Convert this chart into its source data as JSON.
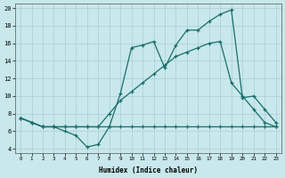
{
  "xlabel": "Humidex (Indice chaleur)",
  "bg_color": "#c8e8ec",
  "grid_color": "#a8cdd4",
  "line_color": "#1a6e6a",
  "xlim": [
    -0.5,
    23.5
  ],
  "ylim": [
    3.5,
    20.5
  ],
  "yticks": [
    4,
    6,
    8,
    10,
    12,
    14,
    16,
    18,
    20
  ],
  "xticks": [
    0,
    1,
    2,
    3,
    4,
    5,
    6,
    7,
    8,
    9,
    10,
    11,
    12,
    13,
    14,
    15,
    16,
    17,
    18,
    19,
    20,
    21,
    22,
    23
  ],
  "line_flat_x": [
    0,
    1,
    2,
    3,
    4,
    5,
    6,
    7,
    8,
    9,
    10,
    11,
    12,
    13,
    14,
    15,
    16,
    17,
    18,
    19,
    20,
    21,
    22,
    23
  ],
  "line_flat_y": [
    7.5,
    7.0,
    6.5,
    6.5,
    6.5,
    6.5,
    6.5,
    6.5,
    6.5,
    6.5,
    6.5,
    6.5,
    6.5,
    6.5,
    6.5,
    6.5,
    6.5,
    6.5,
    6.5,
    6.5,
    6.5,
    6.5,
    6.5,
    6.5
  ],
  "line_peak_x": [
    0,
    1,
    2,
    3,
    4,
    5,
    6,
    7,
    8,
    9,
    10,
    11,
    12,
    13,
    14,
    15,
    16,
    17,
    18,
    19,
    20,
    21,
    22,
    23
  ],
  "line_peak_y": [
    7.5,
    7.0,
    6.5,
    6.5,
    6.0,
    5.5,
    4.2,
    4.5,
    6.5,
    10.3,
    15.5,
    15.8,
    16.2,
    13.2,
    15.8,
    17.5,
    17.5,
    18.5,
    19.3,
    19.8,
    9.8,
    10.0,
    8.5,
    7.0
  ],
  "line_diag_x": [
    0,
    1,
    2,
    3,
    4,
    5,
    6,
    7,
    8,
    9,
    10,
    11,
    12,
    13,
    14,
    15,
    16,
    17,
    18,
    19,
    20,
    21,
    22,
    23
  ],
  "line_diag_y": [
    7.5,
    7.0,
    6.5,
    6.5,
    6.5,
    6.5,
    6.5,
    6.5,
    8.0,
    9.5,
    10.5,
    11.5,
    12.5,
    13.5,
    14.5,
    15.0,
    15.5,
    16.0,
    16.2,
    11.5,
    10.0,
    8.5,
    7.0,
    6.5
  ]
}
